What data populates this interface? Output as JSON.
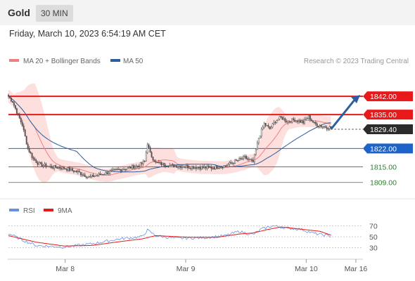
{
  "header": {
    "symbol": "Gold",
    "timeframe": "30 MIN",
    "datetime": "Friday, March 10, 2023 6:54:19 AM CET",
    "credit": "Research © 2023 Trading Central"
  },
  "colors": {
    "resistance": "#e8191a",
    "support": "#1e64c8",
    "green_level": "#2e7d32",
    "last_price": "#2b2b2b",
    "ma20": "#f08080",
    "ma50": "#2d5f9e",
    "bollinger_fill": "#fde0de",
    "candle": "#555555",
    "arrow": "#2d5f9e",
    "rsi": "#6a8fe0",
    "rsi_ma": "#e51a1a"
  },
  "chart_data": [
    {
      "type": "candlestick",
      "legend": [
        {
          "name": "MA 20 + Bollinger Bands",
          "color": "#f08080"
        },
        {
          "name": "MA 50",
          "color": "#2d5f9e"
        }
      ],
      "legend_placement": "top-left",
      "ylim": [
        1803,
        1852
      ],
      "x_ticks": [
        "Mar 8",
        "Mar 9",
        "Mar 10",
        "Mar 16"
      ],
      "x_tick_positions": [
        0.16,
        0.5,
        0.84,
        0.98
      ],
      "levels": [
        {
          "value": 1842.0,
          "label": "1842.00",
          "kind": "resistance"
        },
        {
          "value": 1835.0,
          "label": "1835.00",
          "kind": "resistance"
        },
        {
          "value": 1829.4,
          "label": "1829.40",
          "kind": "last"
        },
        {
          "value": 1822.0,
          "label": "1822.00",
          "kind": "support"
        },
        {
          "value": 1815.0,
          "label": "1815.00",
          "kind": "minor"
        },
        {
          "value": 1809.0,
          "label": "1809.00",
          "kind": "minor"
        }
      ],
      "close_anchors": [
        [
          0,
          1842
        ],
        [
          3,
          1840
        ],
        [
          6,
          1836
        ],
        [
          10,
          1831
        ],
        [
          14,
          1822
        ],
        [
          18,
          1818
        ],
        [
          22,
          1816
        ],
        [
          30,
          1815
        ],
        [
          40,
          1814.5
        ],
        [
          50,
          1813
        ],
        [
          58,
          1811
        ],
        [
          66,
          1812
        ],
        [
          76,
          1813.5
        ],
        [
          86,
          1814.5
        ],
        [
          94,
          1815.5
        ],
        [
          98,
          1817
        ],
        [
          100,
          1824
        ],
        [
          102,
          1820
        ],
        [
          106,
          1816.5
        ],
        [
          116,
          1815.5
        ],
        [
          126,
          1815.2
        ],
        [
          136,
          1814.8
        ],
        [
          146,
          1814.6
        ],
        [
          156,
          1815.4
        ],
        [
          162,
          1816.8
        ],
        [
          170,
          1818.5
        ],
        [
          176,
          1816.8
        ],
        [
          180,
          1826
        ],
        [
          184,
          1831.5
        ],
        [
          188,
          1829.5
        ],
        [
          192,
          1832.5
        ],
        [
          196,
          1834
        ],
        [
          200,
          1832.5
        ],
        [
          206,
          1833
        ],
        [
          212,
          1832
        ],
        [
          216,
          1834.2
        ],
        [
          220,
          1831.5
        ],
        [
          226,
          1830.5
        ],
        [
          232,
          1830
        ]
      ],
      "projection": {
        "from": [
          232,
          1829.4
        ],
        "to": [
          252,
          1842
        ]
      }
    },
    {
      "type": "line",
      "legend": [
        {
          "name": "RSI",
          "color": "#6a8fe0"
        },
        {
          "name": "9MA",
          "color": "#e51a1a"
        }
      ],
      "legend_placement": "top-left",
      "ylim": [
        10,
        90
      ],
      "y_ticks": [
        30,
        50,
        70
      ],
      "rsi_anchors": [
        [
          0,
          56
        ],
        [
          10,
          44
        ],
        [
          20,
          34
        ],
        [
          40,
          31
        ],
        [
          60,
          37
        ],
        [
          80,
          46
        ],
        [
          96,
          50
        ],
        [
          100,
          62
        ],
        [
          106,
          52
        ],
        [
          120,
          47
        ],
        [
          140,
          48
        ],
        [
          156,
          52
        ],
        [
          166,
          60
        ],
        [
          172,
          56
        ],
        [
          176,
          54
        ],
        [
          182,
          64
        ],
        [
          190,
          70
        ],
        [
          200,
          66
        ],
        [
          210,
          64
        ],
        [
          220,
          56
        ],
        [
          232,
          51
        ]
      ],
      "rsi_ma_anchors": [
        [
          0,
          52
        ],
        [
          20,
          40
        ],
        [
          40,
          33
        ],
        [
          60,
          34
        ],
        [
          80,
          41
        ],
        [
          96,
          46
        ],
        [
          106,
          52
        ],
        [
          130,
          49
        ],
        [
          150,
          49
        ],
        [
          166,
          55
        ],
        [
          176,
          57
        ],
        [
          186,
          63
        ],
        [
          196,
          68
        ],
        [
          210,
          64
        ],
        [
          224,
          60
        ],
        [
          232,
          53
        ]
      ]
    }
  ]
}
